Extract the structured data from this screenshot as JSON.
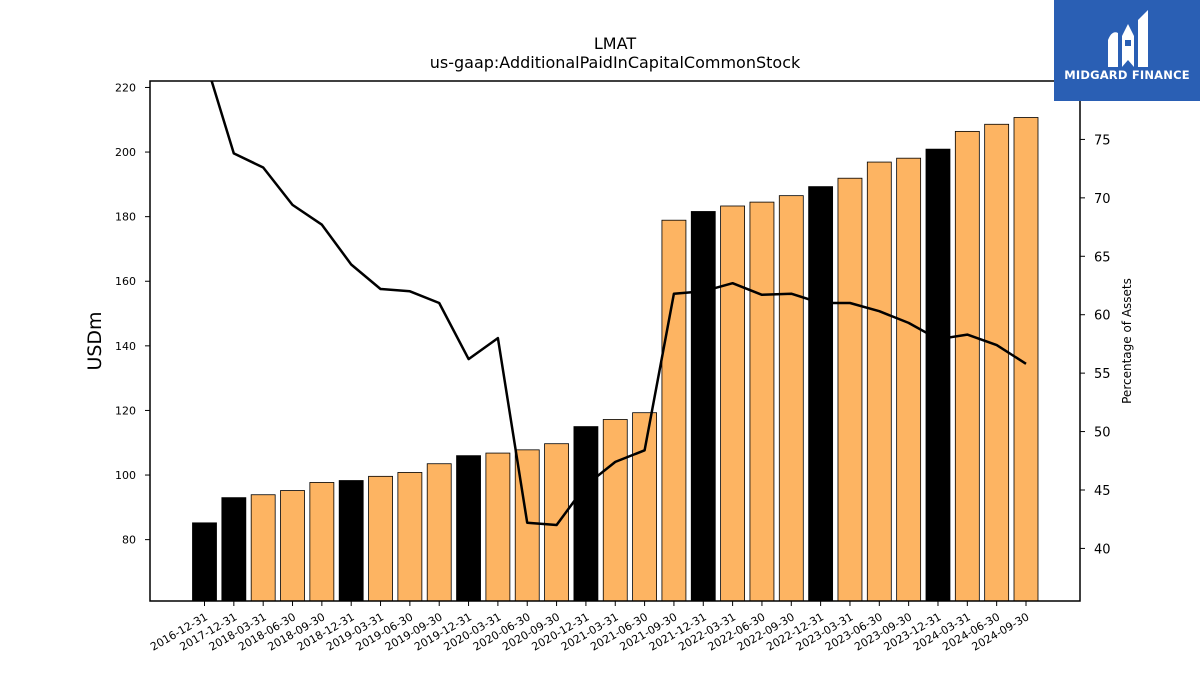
{
  "brand": {
    "name": "MIDGARD FINANCE",
    "bg_color": "#2a5fb4"
  },
  "chart_data": {
    "type": "bar",
    "title": "LMAT",
    "subtitle": "us-gaap:AdditionalPaidInCapitalCommonStock",
    "ylabel": "USDm",
    "y2label": "Percentage of Assets",
    "ylim": [
      61,
      222
    ],
    "y2lim": [
      35.5,
      80.0
    ],
    "yticks": [
      80,
      100,
      120,
      140,
      160,
      180,
      200,
      220
    ],
    "y2ticks": [
      40,
      45,
      50,
      55,
      60,
      65,
      70,
      75
    ],
    "categories": [
      "2016-12-31",
      "2017-12-31",
      "2018-03-31",
      "2018-06-30",
      "2018-09-30",
      "2018-12-31",
      "2019-03-31",
      "2019-06-30",
      "2019-09-30",
      "2019-12-31",
      "2020-03-31",
      "2020-06-30",
      "2020-09-30",
      "2020-12-31",
      "2021-03-31",
      "2021-06-30",
      "2021-09-30",
      "2021-12-31",
      "2022-03-31",
      "2022-06-30",
      "2022-09-30",
      "2022-12-31",
      "2023-03-31",
      "2023-06-30",
      "2023-09-30",
      "2023-12-31",
      "2024-03-31",
      "2024-06-30",
      "2024-09-30"
    ],
    "series": [
      {
        "type": "bar",
        "values": [
          85.2,
          93.0,
          93.9,
          95.2,
          97.7,
          98.3,
          99.6,
          100.8,
          103.5,
          106.0,
          106.8,
          107.8,
          109.7,
          115.0,
          117.2,
          119.3,
          178.9,
          181.6,
          183.3,
          184.5,
          186.5,
          189.3,
          191.9,
          196.9,
          198.1,
          200.9,
          206.4,
          208.6,
          210.7
        ],
        "annual_flags": [
          true,
          true,
          false,
          false,
          false,
          true,
          false,
          false,
          false,
          true,
          false,
          false,
          false,
          true,
          false,
          false,
          false,
          true,
          false,
          false,
          false,
          true,
          false,
          false,
          false,
          true,
          false,
          false,
          false
        ],
        "annual_color": "#000000",
        "quarter_color": "#fdb462",
        "edge_color": "#000000"
      },
      {
        "type": "line",
        "axis": "right",
        "values": [
          82.0,
          73.8,
          72.6,
          69.4,
          67.7,
          64.3,
          62.2,
          62.0,
          61.0,
          56.2,
          58.0,
          42.2,
          42.0,
          45.4,
          47.4,
          48.4,
          61.8,
          62.0,
          62.7,
          61.7,
          61.8,
          61.0,
          61.0,
          60.3,
          59.3,
          57.9,
          58.3,
          57.4,
          55.8
        ],
        "color": "#000000"
      }
    ]
  }
}
